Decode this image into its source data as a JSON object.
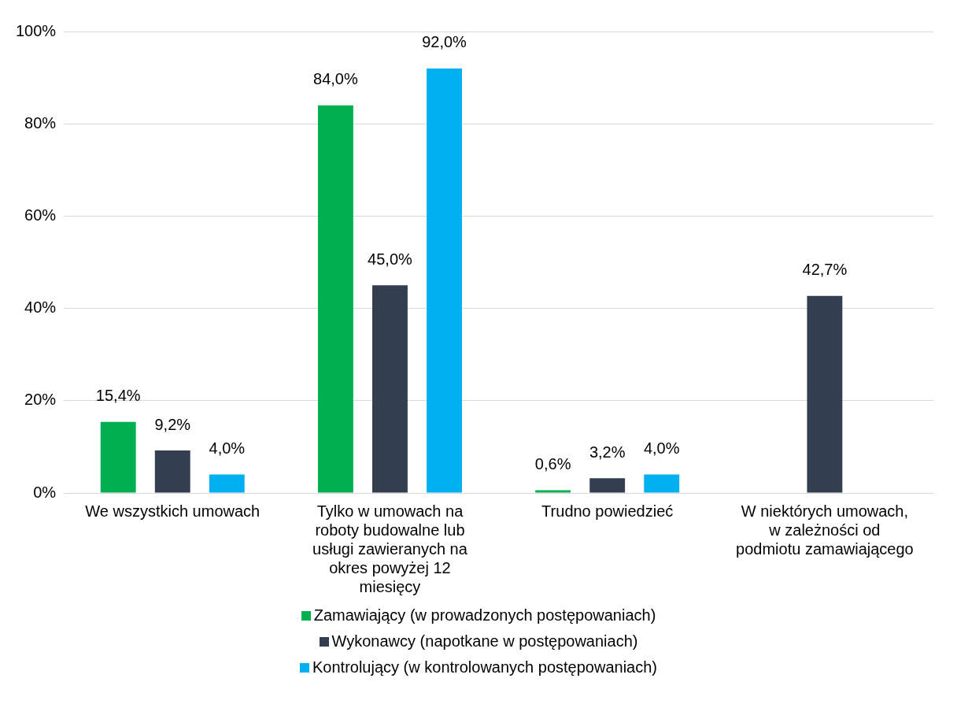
{
  "chart_data": {
    "type": "bar",
    "categories": [
      "We wszystkich umowach",
      "Tylko w umowach na roboty budowalne lub usługi zawieranych na okres powyżej 12 miesięcy",
      "Trudno powiedzieć",
      "W niektórych umowach, w zależności od podmiotu zamawiającego"
    ],
    "series": [
      {
        "name": "Zamawiający (w prowadzonych postępowaniach)",
        "color": "#00b050",
        "values": [
          15.4,
          84.0,
          0.6,
          null
        ],
        "value_labels": [
          "15,4%",
          "84,0%",
          "0,6%",
          null
        ]
      },
      {
        "name": "Wykonawcy (napotkane w postępowaniach)",
        "color": "#333f50",
        "values": [
          9.2,
          45.0,
          3.2,
          42.7
        ],
        "value_labels": [
          "9,2%",
          "45,0%",
          "3,2%",
          "42,7%"
        ]
      },
      {
        "name": "Kontrolujący (w kontrolowanych postępowaniach)",
        "color": "#00b0f0",
        "values": [
          4.0,
          92.0,
          4.0,
          null
        ],
        "value_labels": [
          "4,0%",
          "92,0%",
          "4,0%",
          null
        ]
      }
    ],
    "ylim": [
      0,
      100
    ],
    "yticks": [
      {
        "value": 0,
        "label": "0%"
      },
      {
        "value": 20,
        "label": "20%"
      },
      {
        "value": 40,
        "label": "40%"
      },
      {
        "value": 60,
        "label": "60%"
      },
      {
        "value": 80,
        "label": "80%"
      },
      {
        "value": 100,
        "label": "100%"
      }
    ],
    "grid": "y",
    "legend": "bottom"
  }
}
